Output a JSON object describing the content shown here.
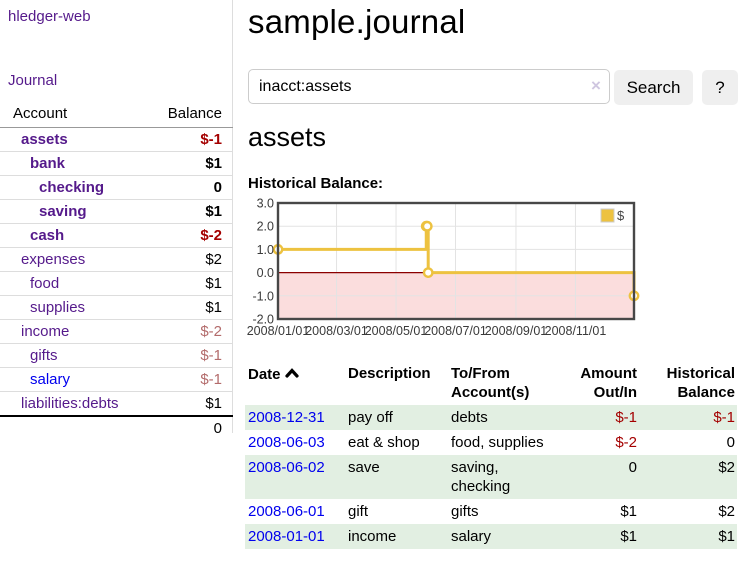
{
  "app": {
    "brand": "hledger-web",
    "nav_journal": "Journal"
  },
  "sidebar": {
    "col_account": "Account",
    "col_balance": "Balance",
    "accounts": [
      {
        "name": "assets",
        "indent": 1,
        "bold": true,
        "blue": false,
        "balance": "$-1",
        "neg": "strong"
      },
      {
        "name": "bank",
        "indent": 2,
        "bold": true,
        "blue": false,
        "balance": "$1",
        "neg": "none"
      },
      {
        "name": "checking",
        "indent": 3,
        "bold": true,
        "blue": false,
        "balance": "0",
        "neg": "none"
      },
      {
        "name": "saving",
        "indent": 3,
        "bold": true,
        "blue": false,
        "balance": "$1",
        "neg": "none"
      },
      {
        "name": "cash",
        "indent": 2,
        "bold": true,
        "blue": false,
        "balance": "$-2",
        "neg": "strong"
      },
      {
        "name": "expenses",
        "indent": 1,
        "bold": false,
        "blue": false,
        "balance": "$2",
        "neg": "none"
      },
      {
        "name": "food",
        "indent": 2,
        "bold": false,
        "blue": false,
        "balance": "$1",
        "neg": "none"
      },
      {
        "name": "supplies",
        "indent": 2,
        "bold": false,
        "blue": false,
        "balance": "$1",
        "neg": "none"
      },
      {
        "name": "income",
        "indent": 1,
        "bold": false,
        "blue": false,
        "balance": "$-2",
        "neg": "soft"
      },
      {
        "name": "gifts",
        "indent": 2,
        "bold": false,
        "blue": false,
        "balance": "$-1",
        "neg": "soft"
      },
      {
        "name": "salary",
        "indent": 2,
        "bold": false,
        "blue": true,
        "balance": "$-1",
        "neg": "soft"
      },
      {
        "name": "liabilities:debts",
        "indent": 1,
        "bold": false,
        "blue": false,
        "balance": "$1",
        "neg": "none"
      }
    ],
    "total": "0"
  },
  "header": {
    "title": "sample.journal"
  },
  "search": {
    "value": "inacct:assets",
    "clear_icon": "×",
    "button_label": "Search",
    "help_label": "?"
  },
  "account_page": {
    "heading": "assets",
    "chart_label": "Historical Balance:"
  },
  "chart_data": {
    "type": "line",
    "title": "Historical Balance",
    "step": true,
    "series": [
      {
        "name": "$",
        "color": "#edc240",
        "points": [
          [
            "2008-01-01",
            1.0
          ],
          [
            "2008-06-01",
            2.0
          ],
          [
            "2008-06-02",
            2.0
          ],
          [
            "2008-06-03",
            0.0
          ],
          [
            "2008-12-31",
            -1.0
          ]
        ]
      }
    ],
    "xrange": [
      "2008-01-01",
      "2008-12-31"
    ],
    "ylim": [
      -2.0,
      3.0
    ],
    "yticks": [
      3.0,
      2.0,
      1.0,
      0.0,
      -1.0,
      -2.0
    ],
    "ytick_labels": [
      "3.0",
      "2.0",
      "1.0",
      "0.0",
      "-1.0",
      "-2.0"
    ],
    "xticks": [
      "2008-01-01",
      "2008-03-01",
      "2008-05-01",
      "2008-07-01",
      "2008-09-01",
      "2008-11-01"
    ],
    "xtick_labels": [
      "2008/01/01",
      "2008/03/01",
      "2008/05/01",
      "2008/07/01",
      "2008/09/01",
      "2008/11/01"
    ],
    "legend": {
      "label": "$",
      "position": "top-right",
      "swatch_color": "#edc240"
    },
    "grid": true,
    "colors": {
      "grid": "#e3e3e3",
      "border": "#474747",
      "zero_line": "#8b0000",
      "negative_region_fill": "#fbdddd",
      "tick_text": "#3a3a3a"
    }
  },
  "register": {
    "columns": {
      "date": "Date",
      "description": "Description",
      "accounts": "To/From Account(s)",
      "amount": "Amount Out/In",
      "balance": "Historical Balance"
    },
    "sort_icon": "chevron-up",
    "rows": [
      {
        "date": "2008-12-31",
        "description": "pay off",
        "accounts": "debts",
        "amount": "$-1",
        "amount_neg": true,
        "balance": "$-1",
        "balance_neg": true,
        "shaded": true
      },
      {
        "date": "2008-06-03",
        "description": "eat & shop",
        "accounts": "food, supplies",
        "amount": "$-2",
        "amount_neg": true,
        "balance": "0",
        "balance_neg": false,
        "shaded": false
      },
      {
        "date": "2008-06-02",
        "description": "save",
        "accounts": "saving, checking",
        "amount": "0",
        "amount_neg": false,
        "balance": "$2",
        "balance_neg": false,
        "shaded": true
      },
      {
        "date": "2008-06-01",
        "description": "gift",
        "accounts": "gifts",
        "amount": "$1",
        "amount_neg": false,
        "balance": "$2",
        "balance_neg": false,
        "shaded": false
      },
      {
        "date": "2008-01-01",
        "description": "income",
        "accounts": "salary",
        "amount": "$1",
        "amount_neg": false,
        "balance": "$1",
        "balance_neg": false,
        "shaded": true
      }
    ]
  }
}
